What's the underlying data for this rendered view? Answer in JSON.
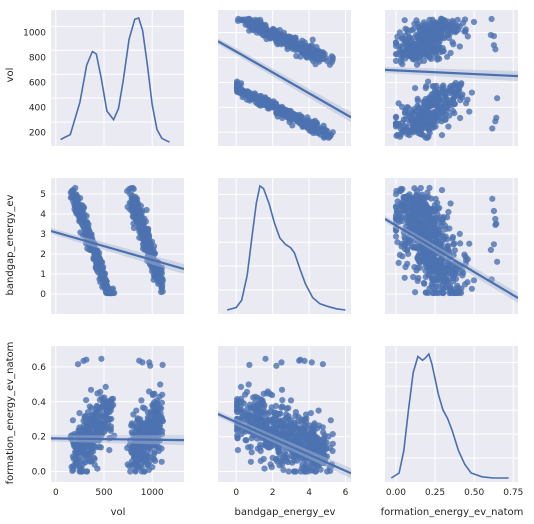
{
  "chart_data": {
    "type": "pairplot",
    "variables": [
      "vol",
      "bandgap_energy_ev",
      "formation_energy_ev_natom"
    ],
    "grid": true,
    "style": {
      "panel_bg": "#eaeaf2",
      "grid_color": "#ffffff",
      "mark_color": "#4c72b0",
      "line_color": "#4a6fae",
      "ci_color": "#a9b7d3"
    },
    "axes": {
      "vol": {
        "label": "vol",
        "range": [
          -50,
          1330
        ],
        "ticks": [
          0,
          500,
          1000
        ],
        "tick_labels": [
          "0",
          "500",
          "1000"
        ],
        "row_range": [
          90,
          1180
        ],
        "row_ticks": [
          200,
          400,
          600,
          800,
          1000
        ],
        "row_tick_labels": [
          "200",
          "400",
          "600",
          "800",
          "1000"
        ]
      },
      "bandgap_energy_ev": {
        "label": "bandgap_energy_ev",
        "range": [
          -1.0,
          6.3
        ],
        "ticks": [
          0,
          2,
          4,
          6
        ],
        "tick_labels": [
          "0",
          "2",
          "4",
          "6"
        ],
        "row_range": [
          -1.0,
          5.8
        ],
        "row_ticks": [
          0,
          1,
          2,
          3,
          4,
          5
        ],
        "row_tick_labels": [
          "0",
          "1",
          "2",
          "3",
          "4",
          "5"
        ]
      },
      "formation_energy_ev_natom": {
        "label": "formation_energy_ev_natom",
        "range": [
          -0.07,
          0.78
        ],
        "ticks": [
          0.0,
          0.25,
          0.5,
          0.75
        ],
        "tick_labels": [
          "0.00",
          "0.25",
          "0.50",
          "0.75"
        ],
        "row_range": [
          -0.06,
          0.72
        ],
        "row_ticks": [
          0.0,
          0.2,
          0.4,
          0.6
        ],
        "row_tick_labels": [
          "0.0",
          "0.2",
          "0.4",
          "0.6"
        ]
      }
    },
    "diagonal_kde": {
      "vol": {
        "x": [
          50,
          150,
          250,
          320,
          380,
          420,
          470,
          530,
          600,
          650,
          700,
          760,
          820,
          860,
          900,
          950,
          1000,
          1050,
          1100,
          1150,
          1180
        ],
        "y": [
          0.02,
          0.06,
          0.32,
          0.62,
          0.73,
          0.71,
          0.52,
          0.25,
          0.18,
          0.27,
          0.5,
          0.83,
          0.99,
          1.0,
          0.9,
          0.62,
          0.3,
          0.1,
          0.03,
          0.01,
          0.0
        ]
      },
      "bandgap_energy_ev": {
        "x": [
          -0.5,
          0.0,
          0.3,
          0.6,
          0.9,
          1.1,
          1.3,
          1.5,
          1.8,
          2.1,
          2.4,
          2.7,
          3.0,
          3.2,
          3.5,
          3.8,
          4.2,
          4.6,
          5.0,
          5.5,
          6.0
        ],
        "y": [
          0.0,
          0.02,
          0.08,
          0.28,
          0.63,
          0.86,
          1.0,
          0.98,
          0.86,
          0.7,
          0.58,
          0.53,
          0.5,
          0.46,
          0.33,
          0.21,
          0.1,
          0.05,
          0.03,
          0.01,
          0.0
        ]
      },
      "formation_energy_ev_natom": {
        "x": [
          -0.03,
          0.02,
          0.05,
          0.08,
          0.11,
          0.14,
          0.17,
          0.19,
          0.21,
          0.23,
          0.25,
          0.27,
          0.3,
          0.33,
          0.36,
          0.4,
          0.44,
          0.48,
          0.55,
          0.62,
          0.72
        ],
        "y": [
          0.0,
          0.04,
          0.22,
          0.55,
          0.85,
          0.98,
          0.95,
          0.97,
          1.0,
          0.92,
          0.8,
          0.68,
          0.55,
          0.48,
          0.38,
          0.22,
          0.11,
          0.04,
          0.01,
          0.0,
          0.0
        ]
      }
    },
    "regression_lines": {
      "vol|bandgap_energy_ev": [
        [
          -50,
          3.15
        ],
        [
          1330,
          1.25
        ]
      ],
      "vol|formation_energy_ev_natom": [
        [
          -50,
          0.19
        ],
        [
          1330,
          0.18
        ]
      ],
      "bandgap_energy_ev|vol": [
        [
          -1.0,
          930
        ],
        [
          6.3,
          320
        ]
      ],
      "bandgap_energy_ev|formation_energy_ev_natom": [
        [
          -1.0,
          0.33
        ],
        [
          6.3,
          -0.01
        ]
      ],
      "formation_energy_ev_natom|vol": [
        [
          -0.07,
          700
        ],
        [
          0.78,
          650
        ]
      ],
      "formation_energy_ev_natom|bandgap_energy_ev": [
        [
          -0.07,
          3.75
        ],
        [
          0.78,
          -0.2
        ]
      ]
    }
  }
}
